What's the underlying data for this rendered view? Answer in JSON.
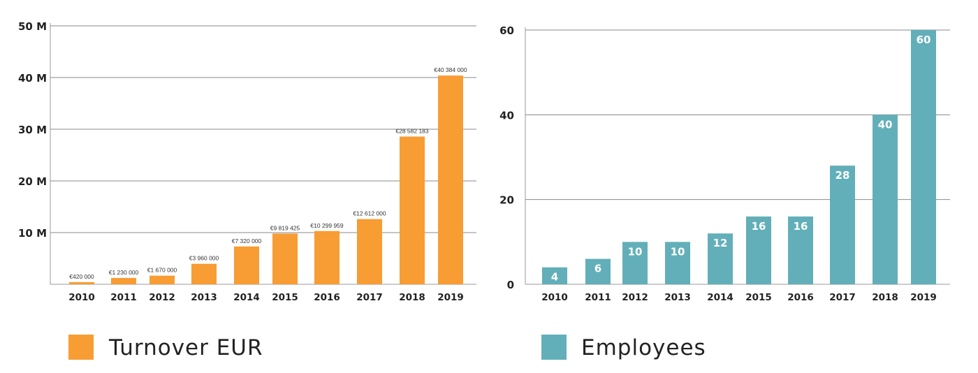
{
  "colors": {
    "turnover": "#F89C34",
    "employees": "#62AFB9",
    "grid": "#888888",
    "axis": "#999999"
  },
  "chart_data": [
    {
      "type": "bar",
      "categories": [
        "2010",
        "2011",
        "2012",
        "2013",
        "2014",
        "2015",
        "2016",
        "2017",
        "2018",
        "2019"
      ],
      "series": [
        {
          "name": "Turnover EUR",
          "values": [
            420000,
            1230000,
            1670000,
            3960000,
            7320000,
            9819425,
            10299959,
            12612000,
            28582183,
            40384000
          ],
          "labels": [
            "€420 000",
            "€1 230 000",
            "€1 670 000",
            "€3 960 000",
            "€7 320 000",
            "€9 819 425",
            "€10 299 959",
            "€12 612 000",
            "€28 582 183",
            "€40 384 000"
          ]
        }
      ],
      "yticks": [
        10000000,
        20000000,
        30000000,
        40000000,
        50000000
      ],
      "ytick_labels": [
        "10 M",
        "20 M",
        "30 M",
        "40 M",
        "50 M"
      ],
      "ylim": [
        0,
        50000000
      ],
      "grid": true,
      "legend": "bottom-left"
    },
    {
      "type": "bar",
      "categories": [
        "2010",
        "2011",
        "2012",
        "2013",
        "2014",
        "2015",
        "2016",
        "2017",
        "2018",
        "2019"
      ],
      "series": [
        {
          "name": "Employees",
          "values": [
            4,
            6,
            10,
            10,
            12,
            16,
            16,
            28,
            40,
            60
          ],
          "labels": [
            "4",
            "6",
            "10",
            "10",
            "12",
            "16",
            "16",
            "28",
            "40",
            "60"
          ]
        }
      ],
      "yticks": [
        0,
        20,
        40,
        60
      ],
      "ytick_labels": [
        "0",
        "20",
        "40",
        "60"
      ],
      "ylim": [
        0,
        60
      ],
      "grid": true,
      "legend": "bottom-left"
    }
  ]
}
